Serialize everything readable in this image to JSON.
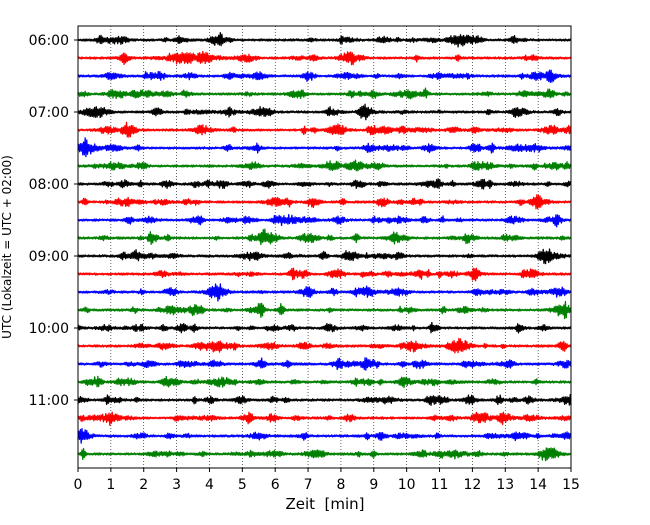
{
  "chart_data": {
    "type": "line",
    "title": "",
    "xlabel": "Zeit  [min]",
    "ylabel": "UTC (Lokalzeit = UTC + 02:00)",
    "xlim": [
      0,
      15
    ],
    "x_ticks": [
      0,
      1,
      2,
      3,
      4,
      5,
      6,
      7,
      8,
      9,
      10,
      11,
      12,
      13,
      14,
      15
    ],
    "y_ticks": [
      "06:00",
      "07:00",
      "08:00",
      "09:00",
      "10:00",
      "11:00"
    ],
    "grid": {
      "x": true,
      "y": false,
      "style": "dotted"
    },
    "trace_interval_min": 15,
    "traces": [
      {
        "start": "06:00",
        "color": "#000000"
      },
      {
        "start": "06:15",
        "color": "#ff0000"
      },
      {
        "start": "06:30",
        "color": "#0000ff"
      },
      {
        "start": "06:45",
        "color": "#008000"
      },
      {
        "start": "07:00",
        "color": "#000000"
      },
      {
        "start": "07:15",
        "color": "#ff0000"
      },
      {
        "start": "07:30",
        "color": "#0000ff"
      },
      {
        "start": "07:45",
        "color": "#008000"
      },
      {
        "start": "08:00",
        "color": "#000000"
      },
      {
        "start": "08:15",
        "color": "#ff0000"
      },
      {
        "start": "08:30",
        "color": "#0000ff"
      },
      {
        "start": "08:45",
        "color": "#008000"
      },
      {
        "start": "09:00",
        "color": "#000000"
      },
      {
        "start": "09:15",
        "color": "#ff0000"
      },
      {
        "start": "09:30",
        "color": "#0000ff"
      },
      {
        "start": "09:45",
        "color": "#008000"
      },
      {
        "start": "10:00",
        "color": "#000000"
      },
      {
        "start": "10:15",
        "color": "#ff0000"
      },
      {
        "start": "10:30",
        "color": "#0000ff"
      },
      {
        "start": "10:45",
        "color": "#008000"
      },
      {
        "start": "11:00",
        "color": "#000000"
      },
      {
        "start": "11:15",
        "color": "#ff0000"
      },
      {
        "start": "11:30",
        "color": "#0000ff"
      },
      {
        "start": "11:45",
        "color": "#008000"
      }
    ]
  }
}
